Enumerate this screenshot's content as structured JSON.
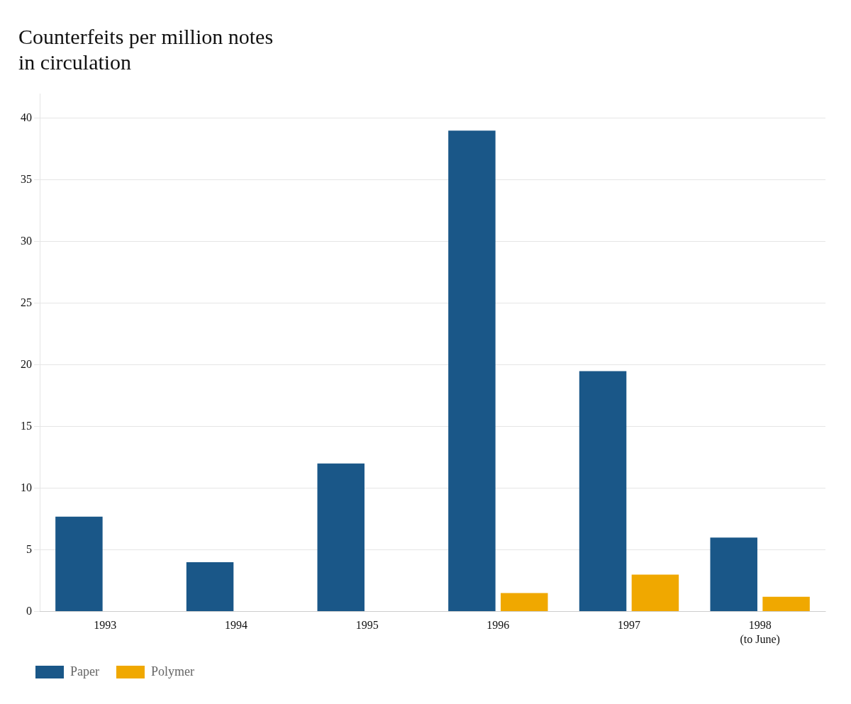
{
  "chart_data": {
    "type": "bar",
    "title": "Counterfeits per million notes\nin circulation",
    "categories": [
      "1993",
      "1994",
      "1995",
      "1996",
      "1997",
      "1998\n(to June)"
    ],
    "series": [
      {
        "name": "Paper",
        "color": "#1a5788",
        "values": [
          7.7,
          4.0,
          12.0,
          39.0,
          19.5,
          6.0
        ]
      },
      {
        "name": "Polymer",
        "color": "#f0a800",
        "values": [
          0.0,
          0.0,
          0.0,
          1.5,
          3.0,
          1.2
        ]
      }
    ],
    "ylim": [
      0,
      42
    ],
    "yticks": [
      0,
      5,
      10,
      15,
      20,
      25,
      30,
      35,
      40
    ],
    "grid": true,
    "legend": "bottom"
  }
}
